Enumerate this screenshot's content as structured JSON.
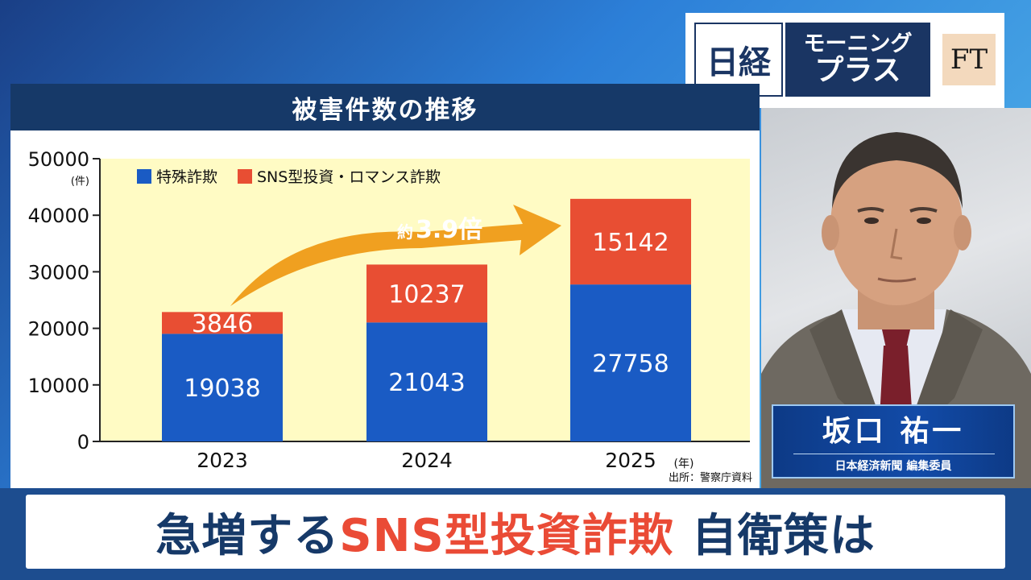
{
  "logo": {
    "nikkei": "日経",
    "show_line1": "モーニング",
    "show_line2": "プラス",
    "partner": "FT"
  },
  "chart_data": {
    "type": "bar",
    "stacked": true,
    "title": "被害件数の推移",
    "categories": [
      "2023",
      "2024",
      "2025"
    ],
    "series": [
      {
        "name": "特殊詐欺",
        "values": [
          19038,
          21043,
          27758
        ],
        "color": "#1a5bc4"
      },
      {
        "name": "SNS型投資・ロマンス詐欺",
        "values": [
          3846,
          10237,
          15142
        ],
        "color": "#e84e33"
      }
    ],
    "ylim": [
      0,
      50000
    ],
    "yticks": [
      0,
      10000,
      20000,
      30000,
      40000,
      50000
    ],
    "yunit": "(件)",
    "xunit": "(年)",
    "annotation": "約3.9倍",
    "annotation_prefix": "約",
    "annotation_value": "3.9倍",
    "source": "出所：警察庁資料",
    "legend_position": "top-left",
    "grid": false,
    "plot_background": "#fffbc4"
  },
  "presenter": {
    "name": "坂口 祐一",
    "role": "日本経済新聞 編集委員"
  },
  "headline": {
    "part1": "急増する",
    "part2": "SNS型投資詐欺",
    "part3": "自衛策は"
  },
  "colors": {
    "navy": "#163968",
    "accent_red": "#ea4b36",
    "arrow_orange": "#f0a020"
  }
}
